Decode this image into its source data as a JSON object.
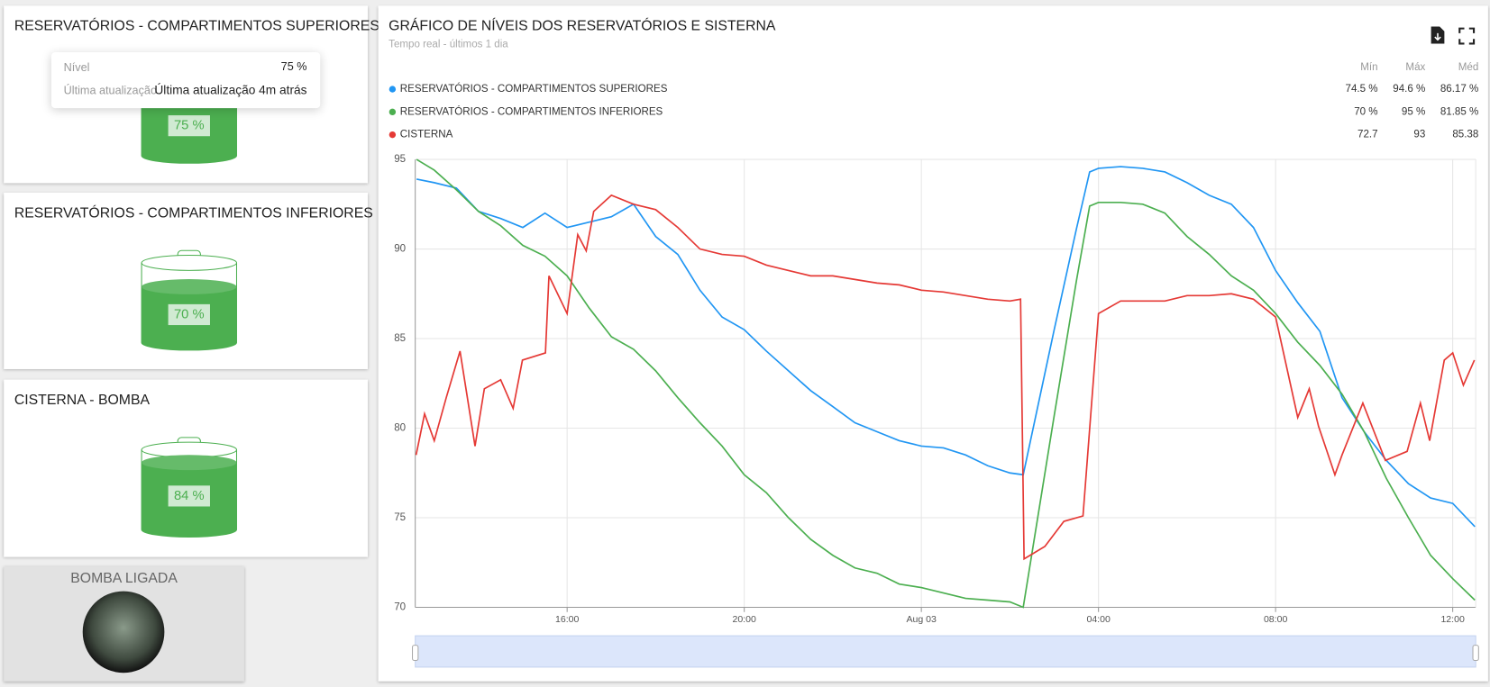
{
  "widgets": [
    {
      "title": "RESERVATÓRIOS - COMPARTIMENTOS SUPERIORES",
      "level": 75,
      "level_label": "75 %"
    },
    {
      "title": "RESERVATÓRIOS - COMPARTIMENTOS INFERIORES",
      "level": 70,
      "level_label": "70 %"
    },
    {
      "title": "CISTERNA - BOMBA",
      "level": 84,
      "level_label": "84 %"
    }
  ],
  "tooltip": {
    "level_key": "Nível",
    "level_value": "75 %",
    "update_key": "Última atualização",
    "update_value": "Última atualização 4m atrás"
  },
  "pump": {
    "label": "BOMBA LIGADA"
  },
  "chart_data": {
    "type": "line",
    "title": "GRÁFICO DE NÍVEIS DOS RESERVATÓRIOS E SISTERNA",
    "subtitle": "Tempo real - últimos 1 dia",
    "stat_headers": [
      "Mín",
      "Máx",
      "Méd"
    ],
    "xlim": [
      12.57,
      36.52
    ],
    "xticks": [
      {
        "value": 16,
        "label": "16:00"
      },
      {
        "value": 20,
        "label": "20:00"
      },
      {
        "value": 24,
        "label": "Aug 03"
      },
      {
        "value": 28,
        "label": "04:00"
      },
      {
        "value": 32,
        "label": "08:00"
      },
      {
        "value": 36,
        "label": "12:00"
      }
    ],
    "ylim": [
      70,
      95
    ],
    "yticks": [
      70,
      75,
      80,
      85,
      90,
      95
    ],
    "grid": true,
    "series": [
      {
        "name": "RESERVATÓRIOS - COMPARTIMENTOS SUPERIORES",
        "color": "#2196f3",
        "stats": [
          "74.5 %",
          "94.6 %",
          "86.17 %"
        ],
        "x": [
          12.6,
          13,
          13.5,
          14,
          14.5,
          15,
          15.5,
          16,
          16.5,
          17,
          17.5,
          18,
          18.5,
          19,
          19.5,
          20,
          20.5,
          21,
          21.5,
          22,
          22.5,
          23,
          23.5,
          24,
          24.5,
          25,
          25.5,
          26,
          26.3,
          27,
          27.5,
          27.8,
          28,
          28.5,
          29,
          29.5,
          30,
          30.5,
          31,
          31.5,
          32,
          32.5,
          33,
          33.5,
          34,
          34.5,
          35,
          35.5,
          36,
          36.5
        ],
        "values": [
          93.9,
          93.7,
          93.4,
          92.1,
          91.7,
          91.2,
          92.0,
          91.2,
          91.5,
          91.8,
          92.5,
          90.7,
          89.7,
          87.7,
          86.2,
          85.5,
          84.3,
          83.2,
          82.1,
          81.2,
          80.3,
          79.8,
          79.3,
          79.0,
          78.9,
          78.5,
          77.9,
          77.5,
          77.4,
          85.5,
          91.1,
          94.3,
          94.5,
          94.6,
          94.5,
          94.3,
          93.7,
          93.0,
          92.5,
          91.2,
          88.8,
          87.0,
          85.4,
          81.7,
          79.8,
          78.2,
          76.9,
          76.1,
          75.8,
          74.5
        ]
      },
      {
        "name": "RESERVATÓRIOS - COMPARTIMENTOS INFERIORES",
        "color": "#4caf50",
        "stats": [
          "70 %",
          "95 %",
          "81.85 %"
        ],
        "x": [
          12.6,
          13,
          13.5,
          14,
          14.5,
          15,
          15.5,
          16,
          16.5,
          17,
          17.5,
          18,
          18.5,
          19,
          19.5,
          20,
          20.5,
          21,
          21.5,
          22,
          22.5,
          23,
          23.5,
          24,
          24.5,
          25,
          25.5,
          26,
          26.3,
          27,
          27.5,
          27.8,
          28,
          28.5,
          29,
          29.5,
          30,
          30.5,
          31,
          31.5,
          32,
          32.5,
          33,
          33.5,
          34,
          34.5,
          35,
          35.5,
          36,
          36.5
        ],
        "values": [
          95.0,
          94.4,
          93.3,
          92.1,
          91.3,
          90.2,
          89.6,
          88.5,
          86.7,
          85.1,
          84.4,
          83.2,
          81.7,
          80.3,
          79.0,
          77.4,
          76.4,
          75.0,
          73.8,
          72.9,
          72.2,
          71.9,
          71.3,
          71.1,
          70.8,
          70.5,
          70.4,
          70.3,
          70.0,
          80.7,
          88.2,
          92.4,
          92.6,
          92.6,
          92.5,
          92.0,
          90.7,
          89.7,
          88.5,
          87.7,
          86.4,
          84.8,
          83.5,
          81.9,
          79.8,
          77.2,
          75.0,
          72.9,
          71.6,
          70.4
        ]
      },
      {
        "name": "CISTERNA",
        "color": "#e53935",
        "stats": [
          "72.7",
          "93",
          "85.38"
        ],
        "x": [
          12.59,
          12.78,
          13.0,
          13.27,
          13.58,
          13.92,
          14.13,
          14.5,
          14.78,
          14.99,
          15.51,
          15.59,
          16,
          16.24,
          16.43,
          16.6,
          17.0,
          17.5,
          18.0,
          18.5,
          19.0,
          19.5,
          20,
          20.5,
          21,
          21.5,
          22,
          22.5,
          23,
          23.5,
          24,
          24.5,
          25,
          25.5,
          26,
          26.24,
          26.32,
          26.79,
          27.22,
          27.65,
          28,
          28.5,
          29,
          29.5,
          30,
          30.5,
          31,
          31.5,
          32,
          32.5,
          32.76,
          32.97,
          33.34,
          33.5,
          33.97,
          34.48,
          34.97,
          35.27,
          35.48,
          35.81,
          36,
          36.24,
          36.49
        ],
        "values": [
          78.5,
          80.8,
          79.3,
          81.7,
          84.3,
          79.0,
          82.2,
          82.7,
          81.1,
          83.8,
          84.2,
          88.5,
          86.4,
          90.8,
          89.9,
          92.1,
          93.0,
          92.5,
          92.2,
          91.2,
          90.0,
          89.7,
          89.6,
          89.1,
          88.8,
          88.5,
          88.5,
          88.3,
          88.1,
          88.0,
          87.7,
          87.6,
          87.4,
          87.2,
          87.1,
          87.2,
          72.7,
          73.4,
          74.8,
          75.1,
          86.4,
          87.1,
          87.1,
          87.1,
          87.4,
          87.4,
          87.5,
          87.2,
          86.2,
          80.6,
          82.2,
          80.1,
          77.4,
          78.5,
          81.4,
          78.2,
          78.7,
          81.4,
          79.3,
          83.8,
          84.2,
          82.4,
          83.8
        ]
      }
    ]
  }
}
